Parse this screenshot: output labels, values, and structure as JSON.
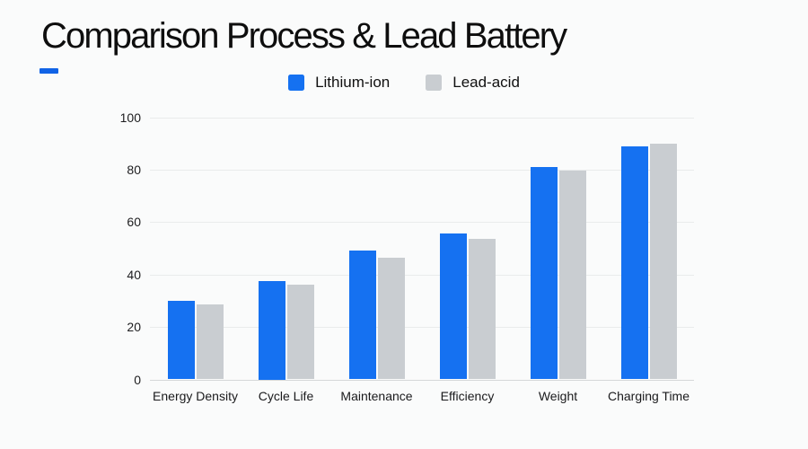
{
  "header": {
    "title": "Comparison Process & Lead Battery"
  },
  "accent": {
    "color": "#1163e6"
  },
  "chart_data": {
    "type": "bar",
    "title": "Comparison Process & Lead Battery",
    "categories": [
      "Energy Density",
      "Cycle Life",
      "Maintenance",
      "Efficiency",
      "Weight",
      "Charging Time"
    ],
    "series": [
      {
        "name": "Lithium-ion",
        "color": "#1571f1",
        "values": [
          30,
          37.5,
          49,
          55.5,
          81,
          89
        ]
      },
      {
        "name": "Lead-acid",
        "color": "#c9cdd1",
        "values": [
          28.5,
          36,
          46.5,
          53.5,
          79.5,
          90
        ]
      }
    ],
    "ylim": [
      0,
      100
    ],
    "yticks": [
      0,
      20,
      40,
      60,
      80,
      100
    ],
    "grid": "horizontal",
    "legend_position": "top",
    "xlabel": "",
    "ylabel": ""
  }
}
